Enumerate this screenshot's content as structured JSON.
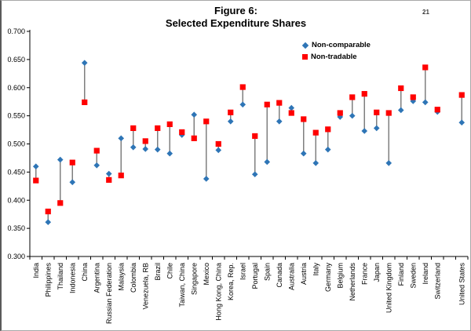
{
  "page": {
    "number": "21"
  },
  "chart_data": {
    "type": "scatter",
    "title_line1": "Figure 6:",
    "title_line2": "Selected Expenditure Shares",
    "ylabel": "",
    "xlabel": "",
    "ylim": [
      0.3,
      0.7
    ],
    "ytick_step": 0.05,
    "ytick_decimals": 3,
    "grid": false,
    "legend_position": "top-right-inside",
    "hilo_line_color": "#7f7f7f",
    "axis_color": "#000000",
    "slot_count": 36,
    "slots": [
      0,
      1,
      2,
      3,
      4,
      5,
      6,
      7,
      8,
      9,
      10,
      11,
      12,
      13,
      14,
      15,
      16,
      17,
      18,
      19,
      20,
      21,
      22,
      23,
      24,
      25,
      26,
      27,
      28,
      29,
      30,
      31,
      32,
      33,
      35
    ],
    "categories": [
      "India",
      "Philippines",
      "Thailand",
      "Indonesia",
      "China",
      "Argentina",
      "Russian Federation",
      "Malaysia",
      "Colombia",
      "Venezuela, RB",
      "Brazil",
      "Chile",
      "Taiwan, China",
      "Singapore",
      "Mexico",
      "Hong Kong, China",
      "Korea, Rep.",
      "Israel",
      "Portugal",
      "Spain",
      "Canada",
      "Australia",
      "Austria",
      "Italy",
      "Germany",
      "Belgium",
      "Netherlands",
      "France",
      "Japan",
      "United Kingdom",
      "Finland",
      "Sweden",
      "Ireland",
      "Switzerland",
      "United States"
    ],
    "series": [
      {
        "name": "Non-comparable",
        "marker": "diamond",
        "color": "#2e75b6",
        "values": [
          0.46,
          0.361,
          0.472,
          0.432,
          0.644,
          0.462,
          0.447,
          0.51,
          0.494,
          0.491,
          0.49,
          0.483,
          0.516,
          0.552,
          0.438,
          0.489,
          0.54,
          0.57,
          0.446,
          0.468,
          0.54,
          0.564,
          0.483,
          0.466,
          0.49,
          0.548,
          0.55,
          0.523,
          0.528,
          0.466,
          0.56,
          0.576,
          0.574,
          0.557,
          0.538
        ]
      },
      {
        "name": "Non-tradable",
        "marker": "square",
        "color": "#ff0000",
        "values": [
          0.435,
          0.38,
          0.395,
          0.467,
          0.574,
          0.488,
          0.436,
          0.444,
          0.528,
          0.505,
          0.528,
          0.535,
          0.521,
          0.51,
          0.54,
          0.5,
          0.556,
          0.601,
          0.514,
          0.57,
          0.573,
          0.555,
          0.544,
          0.52,
          0.526,
          0.555,
          0.583,
          0.589,
          0.556,
          0.555,
          0.599,
          0.583,
          0.636,
          0.561,
          0.587
        ]
      }
    ]
  }
}
